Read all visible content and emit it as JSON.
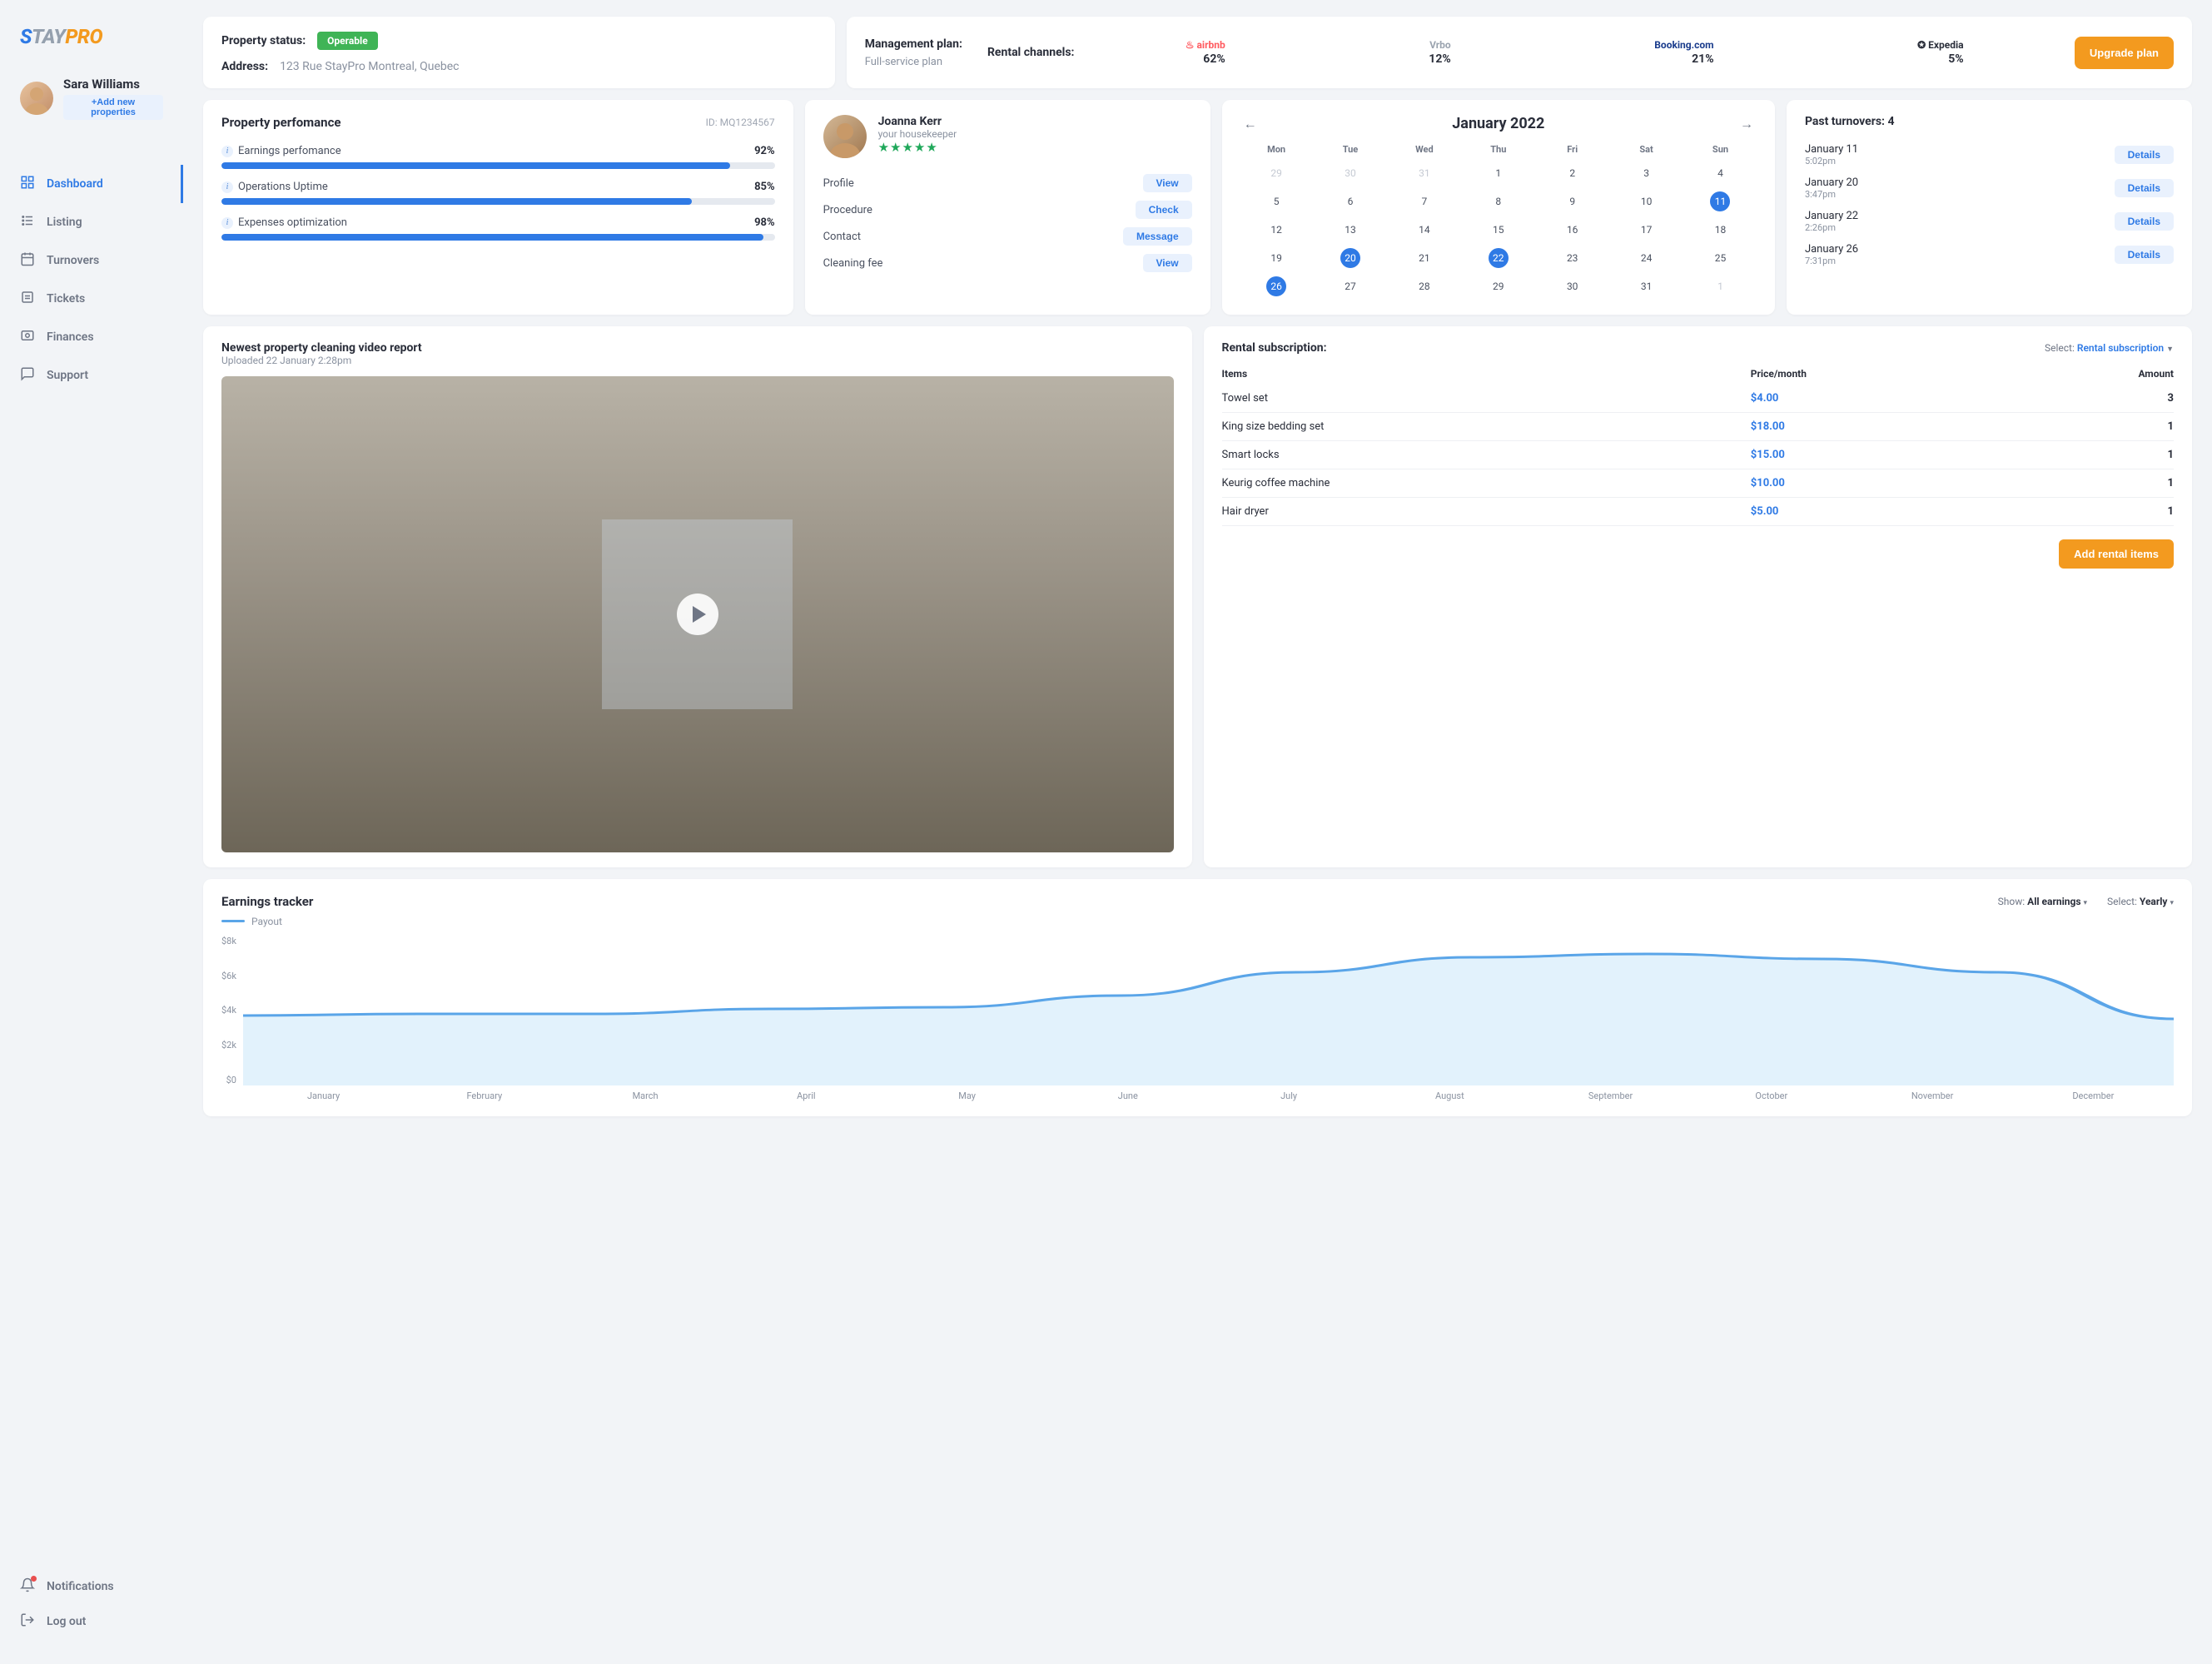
{
  "brand": {
    "s": "S",
    "tay": "TAY",
    "pro": "PRO"
  },
  "user": {
    "name": "Sara Williams",
    "add_prop": "+Add new properties"
  },
  "nav": {
    "items": [
      {
        "label": "Dashboard",
        "active": true
      },
      {
        "label": "Listing",
        "active": false
      },
      {
        "label": "Turnovers",
        "active": false
      },
      {
        "label": "Tickets",
        "active": false
      },
      {
        "label": "Finances",
        "active": false
      },
      {
        "label": "Support",
        "active": false
      }
    ],
    "notifications": "Notifications",
    "logout": "Log out"
  },
  "status": {
    "label": "Property status:",
    "badge": "Operable",
    "address_label": "Address:",
    "address": "123 Rue StayPro Montreal, Quebec"
  },
  "mgmt": {
    "title": "Management plan:",
    "plan": "Full-service plan",
    "channels_label": "Rental channels:",
    "channels": [
      {
        "name": "airbnb",
        "pct": "62%",
        "color": "#ff5a5f",
        "icon": "♨"
      },
      {
        "name": "Vrbo",
        "pct": "12%",
        "color": "#9aa3af"
      },
      {
        "name": "Booking.com",
        "pct": "21%",
        "color": "#1a3c8c"
      },
      {
        "name": "Expedia",
        "pct": "5%",
        "color": "#2a2e3a",
        "icon": "✪"
      }
    ],
    "upgrade": "Upgrade plan"
  },
  "perf": {
    "title": "Property perfomance",
    "id_label": "ID:",
    "id": "MQ1234567",
    "metrics": [
      {
        "label": "Earnings perfomance",
        "pct": 92,
        "pct_text": "92%"
      },
      {
        "label": "Operations Uptime",
        "pct": 85,
        "pct_text": "85%"
      },
      {
        "label": "Expenses optimization",
        "pct": 98,
        "pct_text": "98%"
      }
    ],
    "bar_color": "#2f7ae5",
    "bar_bg": "#e5e9ef"
  },
  "housekeeper": {
    "name": "Joanna Kerr",
    "role": "your housekeeper",
    "stars": "★★★★★",
    "actions": [
      {
        "label": "Profile",
        "btn": "View"
      },
      {
        "label": "Procedure",
        "btn": "Check"
      },
      {
        "label": "Contact",
        "btn": "Message"
      },
      {
        "label": "Cleaning fee",
        "btn": "View"
      }
    ]
  },
  "calendar": {
    "title": "January 2022",
    "dow": [
      "Mon",
      "Tue",
      "Wed",
      "Thu",
      "Fri",
      "Sat",
      "Sun"
    ],
    "days": [
      {
        "n": "29",
        "muted": true
      },
      {
        "n": "30",
        "muted": true
      },
      {
        "n": "31",
        "muted": true
      },
      {
        "n": "1"
      },
      {
        "n": "2"
      },
      {
        "n": "3"
      },
      {
        "n": "4"
      },
      {
        "n": "5"
      },
      {
        "n": "6"
      },
      {
        "n": "7"
      },
      {
        "n": "8"
      },
      {
        "n": "9"
      },
      {
        "n": "10"
      },
      {
        "n": "11",
        "sel": true
      },
      {
        "n": "12"
      },
      {
        "n": "13"
      },
      {
        "n": "14"
      },
      {
        "n": "15"
      },
      {
        "n": "16"
      },
      {
        "n": "17"
      },
      {
        "n": "18"
      },
      {
        "n": "19"
      },
      {
        "n": "20",
        "sel": true
      },
      {
        "n": "21"
      },
      {
        "n": "22",
        "sel": true
      },
      {
        "n": "23"
      },
      {
        "n": "24"
      },
      {
        "n": "25"
      },
      {
        "n": "26",
        "sel": true
      },
      {
        "n": "27"
      },
      {
        "n": "28"
      },
      {
        "n": "29"
      },
      {
        "n": "30"
      },
      {
        "n": "31"
      },
      {
        "n": "1",
        "muted": true
      }
    ]
  },
  "turnovers": {
    "title": "Past turnovers: 4",
    "details_btn": "Details",
    "items": [
      {
        "date": "January 11",
        "time": "5:02pm"
      },
      {
        "date": "January 20",
        "time": "3:47pm"
      },
      {
        "date": "January 22",
        "time": "2:26pm"
      },
      {
        "date": "January 26",
        "time": "7:31pm"
      }
    ]
  },
  "video": {
    "title": "Newest property cleaning video report",
    "subtitle": "Uploaded 22 January 2:28pm"
  },
  "subscription": {
    "title": "Rental subscription:",
    "select_label": "Select:",
    "select_value": "Rental subscription",
    "th_item": "Items",
    "th_price": "Price/month",
    "th_amount": "Amount",
    "rows": [
      {
        "item": "Towel set",
        "price": "$4.00",
        "amount": "3"
      },
      {
        "item": "King size bedding set",
        "price": "$18.00",
        "amount": "1"
      },
      {
        "item": "Smart locks",
        "price": "$15.00",
        "amount": "1"
      },
      {
        "item": "Keurig coffee machine",
        "price": "$10.00",
        "amount": "1"
      },
      {
        "item": "Hair dryer",
        "price": "$5.00",
        "amount": "1"
      }
    ],
    "add_btn": "Add rental items"
  },
  "chart": {
    "title": "Earnings tracker",
    "show_label": "Show:",
    "show_value": "All earnings",
    "select_label": "Select:",
    "select_value": "Yearly",
    "legend": "Payout",
    "y_ticks": [
      "$8k",
      "$6k",
      "$4k",
      "$2k",
      "$0"
    ],
    "x_labels": [
      "January",
      "February",
      "March",
      "April",
      "May",
      "June",
      "July",
      "August",
      "September",
      "October",
      "November",
      "December"
    ],
    "ylim": [
      0,
      9
    ],
    "values": [
      4.2,
      4.3,
      4.3,
      4.6,
      4.7,
      5.4,
      6.8,
      7.7,
      7.9,
      7.6,
      6.8,
      4.0
    ],
    "line_color": "#5aa5e8",
    "fill_color": "#d6ecfb",
    "background": "#ffffff"
  }
}
